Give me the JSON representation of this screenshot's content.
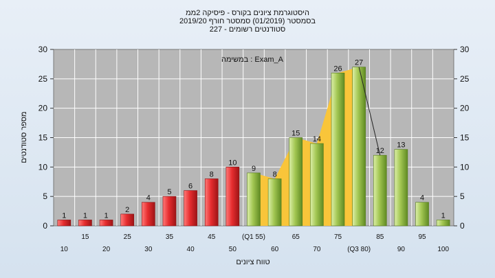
{
  "chart_data": {
    "type": "bar",
    "title_lines": [
      "היסטוגרמת ציונים בקורס - פיסיקה 2ממ",
      "בסמסטר  (01/2019)  סמסטר חורף 2019/20",
      "סטודנטים רשומים - 227"
    ],
    "legend_label": "במשימה : Exam_A",
    "ylabel": "מספר סטודנטים",
    "xlabel": "טווח ציונים",
    "ylim": [
      0,
      30
    ],
    "yticks": [
      0,
      5,
      10,
      15,
      20,
      25,
      30
    ],
    "categories": [
      "10",
      "15",
      "20",
      "25",
      "30",
      "35",
      "40",
      "45",
      "50",
      "(Q1 55)",
      "60",
      "65",
      "70",
      "75",
      "(Q3 80)",
      "85",
      "90",
      "95",
      "100"
    ],
    "values": [
      1,
      1,
      1,
      2,
      4,
      5,
      6,
      8,
      10,
      9,
      8,
      15,
      14,
      26,
      27,
      12,
      13,
      4,
      1
    ],
    "red_range_end": 9,
    "area_range": [
      9,
      14
    ],
    "colors": {
      "red": "#d8262a",
      "green": "#9bc04a",
      "area": "#f9c53a",
      "plot_bg": "#b7b7b7",
      "grid": "#ffffff"
    }
  }
}
